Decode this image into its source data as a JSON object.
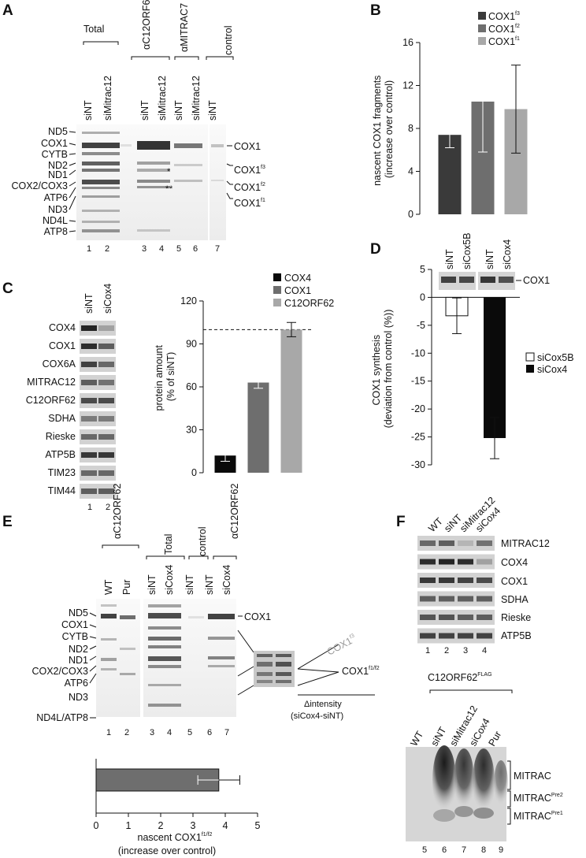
{
  "panels": {
    "A": {
      "label": "A",
      "group_labels": [
        "Total",
        "αC12ORF62",
        "αMITRAC7",
        "control"
      ],
      "lane_names": [
        "siNT",
        "siMitrac12",
        "siNT",
        "siMitrac12",
        "siNT",
        "siMitrac12",
        "siNT"
      ],
      "left_bands": [
        "ND5",
        "COX1",
        "CYTB",
        "ND2",
        "ND1",
        "COX2/COX3",
        "ATP6",
        "ND3",
        "ND4L",
        "ATP8"
      ],
      "right_bands": [
        {
          "main": "COX1",
          "sup": ""
        },
        {
          "main": "COX1",
          "sup": "f3"
        },
        {
          "main": "COX1",
          "sup": "f2"
        },
        {
          "main": "COX1",
          "sup": "f1"
        }
      ],
      "lane_numbers": [
        "1",
        "2",
        "3",
        "4",
        "5",
        "6",
        "7"
      ],
      "asterisks": [
        "*",
        "*",
        "*"
      ]
    },
    "B": {
      "label": "B",
      "chart_data": {
        "type": "bar",
        "ylabel": "nascent COX1 fragments\n(increase over control)",
        "ylim": [
          0,
          16
        ],
        "yticks": [
          "0",
          "4",
          "8",
          "12",
          "16"
        ],
        "legend": [
          {
            "main": "COX1",
            "sup": "f3"
          },
          {
            "main": "COX1",
            "sup": "f2"
          },
          {
            "main": "COX1",
            "sup": "f1"
          }
        ],
        "series": [
          {
            "name": "COX1f3",
            "value": 7.4,
            "error": 1.2,
            "color": "#3a3a3a"
          },
          {
            "name": "COX1f2",
            "value": 10.5,
            "error": 4.7,
            "color": "#6e6e6e"
          },
          {
            "name": "COX1f1",
            "value": 9.8,
            "error": 4.1,
            "color": "#a8a8a8"
          }
        ]
      }
    },
    "C": {
      "label": "C",
      "lane_names": [
        "siNT",
        "siCox4"
      ],
      "proteins": [
        "COX4",
        "COX1",
        "COX6A",
        "MITRAC12",
        "C12ORF62",
        "SDHA",
        "Rieske",
        "ATP5B",
        "TIM23",
        "TIM44"
      ],
      "lane_numbers": [
        "1",
        "2"
      ],
      "chart_data": {
        "type": "bar",
        "ylabel": "protein amount\n(% of siNT)",
        "ylim": [
          0,
          120
        ],
        "yticks": [
          "0",
          "30",
          "60",
          "90",
          "120"
        ],
        "reference_line": 100,
        "series": [
          {
            "name": "COX4",
            "value": 12,
            "error": 4,
            "color": "#0a0a0a"
          },
          {
            "name": "COX1",
            "value": 63,
            "error": 4,
            "color": "#6e6e6e"
          },
          {
            "name": "C12ORF62",
            "value": 100,
            "error": 5,
            "color": "#a8a8a8"
          }
        ]
      }
    },
    "D": {
      "label": "D",
      "lane_names": [
        "siNT",
        "siCox5B",
        "siNT",
        "siCox4"
      ],
      "band_label": "COX1",
      "chart_data": {
        "type": "bar",
        "ylabel": "COX1 synthesis\n(deviation from control (%))",
        "ylim": [
          -30,
          5
        ],
        "yticks": [
          "5",
          "0",
          "-5",
          "-10",
          "-15",
          "-20",
          "-25",
          "-30"
        ],
        "series": [
          {
            "name": "siCox5B",
            "value": -3.3,
            "error": 3.2,
            "color": "#ffffff",
            "legend_mark": "□"
          },
          {
            "name": "siCox4",
            "value": -25.2,
            "error": 3.7,
            "color": "#0a0a0a",
            "legend_mark": "■"
          }
        ]
      }
    },
    "E": {
      "label": "E",
      "group_labels": [
        "αC12ORF62",
        "Total",
        "control",
        "αC12ORF62"
      ],
      "lane_names": [
        "WT",
        "Pur",
        "siNT",
        "siCox4",
        "siNT",
        "siNT",
        "siCox4"
      ],
      "left_bands": [
        "ND5",
        "COX1",
        "CYTB",
        "ND2",
        "ND1",
        "COX2/COX3",
        "ATP6",
        "ND3",
        "ND4L/ATP8"
      ],
      "band_label": "COX1",
      "inset": {
        "upper": {
          "main": "COX1",
          "sup": "f3"
        },
        "lower": {
          "main": "COX1",
          "sup": "f1/f2"
        },
        "caption_1": "Δintensity",
        "caption_2": "(siCox4-siNT)"
      },
      "lane_numbers": [
        "1",
        "2",
        "3",
        "4",
        "5",
        "6",
        "7"
      ],
      "chart_data": {
        "type": "bar",
        "orientation": "horizontal",
        "xlabel_main": "nascent COX1",
        "xlabel_sup": "f1/f2",
        "xlabel_line2": "(increase over control)",
        "xlim": [
          0,
          5
        ],
        "xticks": [
          "0",
          "1",
          "2",
          "3",
          "4",
          "5"
        ],
        "series": [
          {
            "name": "COX1f1/f2",
            "value": 3.8,
            "error": 0.65,
            "color": "#6e6e6e"
          }
        ]
      }
    },
    "F": {
      "label": "F",
      "lane_names_top": [
        "WT",
        "siNT",
        "siMitrac12",
        "siCox4"
      ],
      "proteins": [
        "MITRAC12",
        "COX4",
        "COX1",
        "SDHA",
        "Rieske",
        "ATP5B"
      ],
      "lane_numbers_top": [
        "1",
        "2",
        "3",
        "4"
      ],
      "flag_label": {
        "main": "C12ORF62",
        "sup": "FLAG"
      },
      "lane_names_bottom": [
        "WT",
        "siNT",
        "siMitrac12",
        "siCox4",
        "Pur"
      ],
      "complexes": [
        {
          "main": "MITRAC",
          "sup": ""
        },
        {
          "main": "MITRAC",
          "sup": "Pre2"
        },
        {
          "main": "MITRAC",
          "sup": "Pre1"
        }
      ],
      "lane_numbers_bottom": [
        "5",
        "6",
        "7",
        "8",
        "9"
      ]
    }
  }
}
